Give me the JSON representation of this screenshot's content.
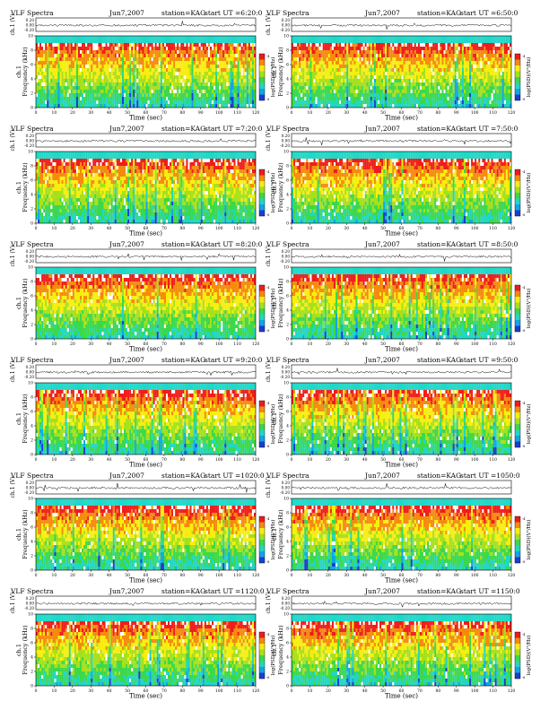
{
  "page": {
    "layout": "6 rows x 2 columns of VLF spectrogram panels"
  },
  "colors": {
    "spectrogram": [
      "#1a3fd0",
      "#10a6e6",
      "#22d6c2",
      "#3bd84a",
      "#a6e01c",
      "#f7ee10",
      "#f58a0d",
      "#ee1c1c",
      "#ffffff"
    ],
    "band_top": "#20d8c8",
    "trace": "#000000"
  },
  "chart_data": [
    {
      "type": "heatmap",
      "title": "VLF Spectra",
      "date": "Jun7,2007",
      "station": "station=KAG",
      "start": "start UT =6:20:0",
      "trace_ylabel": "ch.1 (V)",
      "trace_ticks": [
        "0.20",
        "0.00",
        "-0.20"
      ],
      "ylabel": "ch.1\nFrequency (kHz)",
      "xlabel": "Time (sec)",
      "xlim": [
        0,
        120
      ],
      "ylim": [
        0,
        10
      ],
      "xticks": [
        "0",
        "10",
        "20",
        "30",
        "40",
        "50",
        "60",
        "70",
        "80",
        "90",
        "100",
        "110",
        "120"
      ],
      "yticks": [
        "0",
        "2",
        "4",
        "6",
        "8",
        "10"
      ],
      "colorbar_label": "log(PSD)(V²/Hz)",
      "colorbar_ticks": [
        "-4",
        "-8"
      ]
    },
    {
      "type": "heatmap",
      "title": "VLF Spectra",
      "date": "Jun7,2007",
      "station": "station=KAG",
      "start": "start UT =6:50:0",
      "trace_ylabel": "ch.1 (V)",
      "trace_ticks": [
        "0.20",
        "0.00",
        "-0.20"
      ],
      "ylabel": "ch.1\nFrequency (kHz)",
      "xlabel": "Time (sec)",
      "xlim": [
        0,
        120
      ],
      "ylim": [
        0,
        10
      ],
      "xticks": [
        "0",
        "10",
        "20",
        "30",
        "40",
        "50",
        "60",
        "70",
        "80",
        "90",
        "100",
        "110",
        "120"
      ],
      "yticks": [
        "0",
        "2",
        "4",
        "6",
        "8",
        "10"
      ],
      "colorbar_label": "log(PSD)(V²/Hz)",
      "colorbar_ticks": [
        "-4",
        "-8"
      ]
    },
    {
      "type": "heatmap",
      "title": "VLF Spectra",
      "date": "Jun7,2007",
      "station": "station=KAG",
      "start": "start UT =7:20:0",
      "trace_ylabel": "ch.1 (V)",
      "trace_ticks": [
        "0.20",
        "0.00",
        "-0.20"
      ],
      "ylabel": "ch.1\nFrequency (kHz)",
      "xlabel": "Time (sec)",
      "xlim": [
        0,
        120
      ],
      "ylim": [
        0,
        10
      ],
      "xticks": [
        "0",
        "10",
        "20",
        "30",
        "40",
        "50",
        "60",
        "70",
        "80",
        "90",
        "100",
        "110",
        "120"
      ],
      "yticks": [
        "0",
        "2",
        "4",
        "6",
        "8",
        "10"
      ],
      "colorbar_label": "log(PSD)(V²/Hz)",
      "colorbar_ticks": [
        "-4",
        "-8"
      ]
    },
    {
      "type": "heatmap",
      "title": "VLF Spectra",
      "date": "Jun7,2007",
      "station": "station=KAG",
      "start": "start UT =7:50:0",
      "trace_ylabel": "ch.1 (V)",
      "trace_ticks": [
        "0.20",
        "0.00",
        "-0.20"
      ],
      "ylabel": "ch.1\nFrequency (kHz)",
      "xlabel": "Time (sec)",
      "xlim": [
        0,
        120
      ],
      "ylim": [
        0,
        10
      ],
      "xticks": [
        "0",
        "10",
        "20",
        "30",
        "40",
        "50",
        "60",
        "70",
        "80",
        "90",
        "100",
        "110",
        "120"
      ],
      "yticks": [
        "0",
        "2",
        "4",
        "6",
        "8",
        "10"
      ],
      "colorbar_label": "log(PSD)(V²/Hz)",
      "colorbar_ticks": [
        "-4",
        "-8"
      ]
    },
    {
      "type": "heatmap",
      "title": "VLF Spectra",
      "date": "Jun7,2007",
      "station": "station=KAG",
      "start": "start UT =8:20:0",
      "trace_ylabel": "ch.1 (V)",
      "trace_ticks": [
        "0.20",
        "0.00",
        "-0.20"
      ],
      "ylabel": "ch.1\nFrequency (kHz)",
      "xlabel": "Time (sec)",
      "xlim": [
        0,
        120
      ],
      "ylim": [
        0,
        10
      ],
      "xticks": [
        "0",
        "10",
        "20",
        "30",
        "40",
        "50",
        "60",
        "70",
        "80",
        "90",
        "100",
        "110",
        "120"
      ],
      "yticks": [
        "0",
        "2",
        "4",
        "6",
        "8",
        "10"
      ],
      "colorbar_label": "log(PSD)(V²/Hz)",
      "colorbar_ticks": [
        "-4",
        "-8"
      ]
    },
    {
      "type": "heatmap",
      "title": "VLF Spectra",
      "date": "Jun7,2007",
      "station": "station=KAG",
      "start": "start UT =8:50:0",
      "trace_ylabel": "ch.1 (V)",
      "trace_ticks": [
        "0.20",
        "0.00",
        "-0.20"
      ],
      "ylabel": "ch.1\nFrequency (kHz)",
      "xlabel": "Time (sec)",
      "xlim": [
        0,
        120
      ],
      "ylim": [
        0,
        10
      ],
      "xticks": [
        "0",
        "10",
        "20",
        "30",
        "40",
        "50",
        "60",
        "70",
        "80",
        "90",
        "100",
        "110",
        "120"
      ],
      "yticks": [
        "0",
        "2",
        "4",
        "6",
        "8",
        "10"
      ],
      "colorbar_label": "log(PSD)(V²/Hz)",
      "colorbar_ticks": [
        "-4",
        "-8"
      ]
    },
    {
      "type": "heatmap",
      "title": "VLF Spectra",
      "date": "Jun7,2007",
      "station": "station=KAG",
      "start": "start UT =9:20:0",
      "trace_ylabel": "ch.1 (V)",
      "trace_ticks": [
        "0.20",
        "0.00",
        "-0.20"
      ],
      "ylabel": "ch.1\nFrequency (kHz)",
      "xlabel": "Time (sec)",
      "xlim": [
        0,
        120
      ],
      "ylim": [
        0,
        10
      ],
      "xticks": [
        "0",
        "10",
        "20",
        "30",
        "40",
        "50",
        "60",
        "70",
        "80",
        "90",
        "100",
        "110",
        "120"
      ],
      "yticks": [
        "0",
        "2",
        "4",
        "6",
        "8",
        "10"
      ],
      "colorbar_label": "log(PSD)(V²/Hz)",
      "colorbar_ticks": [
        "-4",
        "-8"
      ]
    },
    {
      "type": "heatmap",
      "title": "VLF Spectra",
      "date": "Jun7,2007",
      "station": "station=KAG",
      "start": "start UT =9:50:0",
      "trace_ylabel": "ch.1 (V)",
      "trace_ticks": [
        "0.20",
        "0.00",
        "-0.20"
      ],
      "ylabel": "ch.1\nFrequency (kHz)",
      "xlabel": "Time (sec)",
      "xlim": [
        0,
        120
      ],
      "ylim": [
        0,
        10
      ],
      "xticks": [
        "0",
        "10",
        "20",
        "30",
        "40",
        "50",
        "60",
        "70",
        "80",
        "90",
        "100",
        "110",
        "120"
      ],
      "yticks": [
        "0",
        "2",
        "4",
        "6",
        "8",
        "10"
      ],
      "colorbar_label": "log(PSD)(V²/Hz)",
      "colorbar_ticks": [
        "-4",
        "-8"
      ]
    },
    {
      "type": "heatmap",
      "title": "VLF Spectra",
      "date": "Jun7,2007",
      "station": "station=KAG",
      "start": "start UT =1020:0",
      "trace_ylabel": "ch.1 (V)",
      "trace_ticks": [
        "0.20",
        "0.00",
        "-0.20"
      ],
      "ylabel": "ch.1\nFrequency (kHz)",
      "xlabel": "Time (sec)",
      "xlim": [
        0,
        120
      ],
      "ylim": [
        0,
        10
      ],
      "xticks": [
        "0",
        "10",
        "20",
        "30",
        "40",
        "50",
        "60",
        "70",
        "80",
        "90",
        "100",
        "110",
        "120"
      ],
      "yticks": [
        "0",
        "2",
        "4",
        "6",
        "8",
        "10"
      ],
      "colorbar_label": "log(PSD)(V²/Hz)",
      "colorbar_ticks": [
        "-4",
        "-8"
      ]
    },
    {
      "type": "heatmap",
      "title": "VLF Spectra",
      "date": "Jun7,2007",
      "station": "station=KAG",
      "start": "start UT =1050:0",
      "trace_ylabel": "ch.1 (V)",
      "trace_ticks": [
        "0.20",
        "0.00",
        "-0.20"
      ],
      "ylabel": "ch.1\nFrequency (kHz)",
      "xlabel": "Time (sec)",
      "xlim": [
        0,
        120
      ],
      "ylim": [
        0,
        10
      ],
      "xticks": [
        "0",
        "10",
        "20",
        "30",
        "40",
        "50",
        "60",
        "70",
        "80",
        "90",
        "100",
        "110",
        "120"
      ],
      "yticks": [
        "0",
        "2",
        "4",
        "6",
        "8",
        "10"
      ],
      "colorbar_label": "log(PSD)(V²/Hz)",
      "colorbar_ticks": [
        "-4",
        "-8"
      ]
    },
    {
      "type": "heatmap",
      "title": "VLF Spectra",
      "date": "Jun7,2007",
      "station": "station=KAG",
      "start": "start UT =1120:0",
      "trace_ylabel": "ch.1 (V)",
      "trace_ticks": [
        "0.20",
        "0.00",
        "-0.20"
      ],
      "ylabel": "ch.1\nFrequency (kHz)",
      "xlabel": "Time (sec)",
      "xlim": [
        0,
        120
      ],
      "ylim": [
        0,
        10
      ],
      "xticks": [
        "0",
        "10",
        "20",
        "30",
        "40",
        "50",
        "60",
        "70",
        "80",
        "90",
        "100",
        "110",
        "120"
      ],
      "yticks": [
        "0",
        "2",
        "4",
        "6",
        "8",
        "10"
      ],
      "colorbar_label": "log(PSD)(V²/Hz)",
      "colorbar_ticks": [
        "-4",
        "-8"
      ]
    },
    {
      "type": "heatmap",
      "title": "VLF Spectra",
      "date": "Jun7,2007",
      "station": "station=KAG",
      "start": "start UT =1150:0",
      "trace_ylabel": "ch.1 (V)",
      "trace_ticks": [
        "0.20",
        "0.00",
        "-0.20"
      ],
      "ylabel": "ch.1\nFrequency (kHz)",
      "xlabel": "Time (sec)",
      "xlim": [
        0,
        120
      ],
      "ylim": [
        0,
        10
      ],
      "xticks": [
        "0",
        "10",
        "20",
        "30",
        "40",
        "50",
        "60",
        "70",
        "80",
        "90",
        "100",
        "110",
        "120"
      ],
      "yticks": [
        "0",
        "2",
        "4",
        "6",
        "8",
        "10"
      ],
      "colorbar_label": "log(PSD)(V²/Hz)",
      "colorbar_ticks": [
        "-4",
        "-8"
      ]
    }
  ]
}
